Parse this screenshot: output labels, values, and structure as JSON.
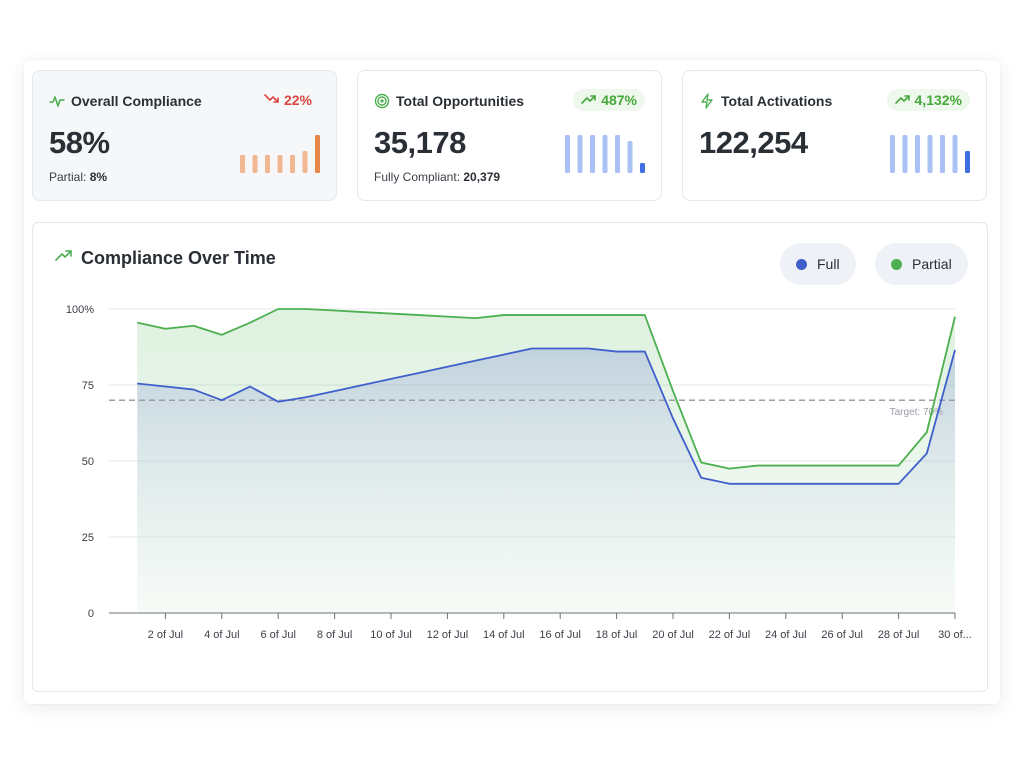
{
  "cards": [
    {
      "title": "Overall Compliance",
      "icon": "activity-icon",
      "badge": "22%",
      "badge_trend": "down",
      "value": "58%",
      "sub_label": "Partial:",
      "sub_value": "8%",
      "spark_color": "#f0b993",
      "spark_last_color": "#e8874a",
      "spark_values": [
        0.45,
        0.45,
        0.45,
        0.45,
        0.45,
        0.55,
        0.95
      ]
    },
    {
      "title": "Total Opportunities",
      "icon": "target-icon",
      "badge": "487%",
      "badge_trend": "up",
      "value": "35,178",
      "sub_label": "Fully Compliant:",
      "sub_value": "20,379",
      "spark_color": "#a9c1f5",
      "spark_last_color": "#3f6fe0",
      "spark_values": [
        0.95,
        0.95,
        0.95,
        0.95,
        0.95,
        0.8,
        0.25
      ]
    },
    {
      "title": "Total Activations",
      "icon": "bolt-icon",
      "badge": "4,132%",
      "badge_trend": "up",
      "value": "122,254",
      "sub_label": "",
      "sub_value": "",
      "spark_color": "#a9c1f5",
      "spark_last_color": "#3f6fe0",
      "spark_values": [
        0.95,
        0.95,
        0.95,
        0.95,
        0.95,
        0.95,
        0.55
      ]
    }
  ],
  "chart_data": {
    "type": "area",
    "title": "Compliance Over Time",
    "xlabel": "",
    "ylabel": "",
    "ylim": [
      0,
      100
    ],
    "yticks": [
      "0",
      "25",
      "50",
      "75",
      "100%"
    ],
    "ytick_values": [
      0,
      25,
      50,
      75,
      100
    ],
    "x": [
      1,
      2,
      3,
      4,
      5,
      6,
      7,
      8,
      9,
      10,
      11,
      12,
      13,
      14,
      15,
      16,
      17,
      18,
      19,
      20,
      21,
      22,
      23,
      24,
      25,
      26,
      27,
      28,
      29,
      30
    ],
    "xtick_labels": [
      "2 of Jul",
      "4 of Jul",
      "6 of Jul",
      "8 of Jul",
      "10 of Jul",
      "12 of Jul",
      "14 of Jul",
      "16 of Jul",
      "18 of Jul",
      "20 of Jul",
      "22 of Jul",
      "24 of Jul",
      "26 of Jul",
      "28 of Jul",
      "30 of..."
    ],
    "xtick_values": [
      2,
      4,
      6,
      8,
      10,
      12,
      14,
      16,
      18,
      20,
      22,
      24,
      26,
      28,
      30
    ],
    "series": [
      {
        "name": "Full",
        "color": "#3f5fcc",
        "values": [
          75.5,
          74.5,
          73.5,
          70,
          74.5,
          69.5,
          71,
          73,
          75,
          77,
          79,
          81,
          83,
          85,
          87,
          87,
          87,
          86,
          86,
          64,
          44.5,
          42.5,
          42.5,
          42.5,
          42.5,
          42.5,
          42.5,
          42.5,
          52.5,
          86.5
        ],
        "points_x": [
          1,
          2,
          3,
          4,
          5,
          6,
          7,
          16,
          17,
          18,
          19,
          20,
          21,
          22,
          23,
          24,
          25,
          26,
          27,
          28,
          29,
          30
        ]
      },
      {
        "name": "Partial",
        "color": "#4caf50",
        "values": [
          95.5,
          93.5,
          94.5,
          91.5,
          95.5,
          100,
          100,
          99.5,
          99,
          98.5,
          98,
          97.5,
          97,
          98,
          98,
          98,
          98,
          98,
          98,
          73,
          49.5,
          47.5,
          48.5,
          48.5,
          48.5,
          48.5,
          48.5,
          48.5,
          59.5,
          97.5
        ]
      }
    ],
    "target_value": 70,
    "target_label": "Target: 70%",
    "grid": true,
    "legend_position": "top-right"
  },
  "legend": [
    {
      "label": "Full",
      "color": "#3f5fcc"
    },
    {
      "label": "Partial",
      "color": "#4caf50"
    }
  ]
}
